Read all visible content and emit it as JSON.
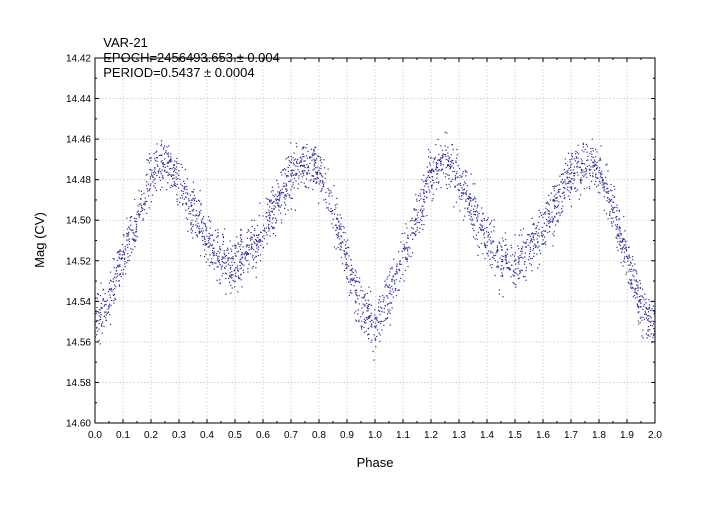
{
  "header": {
    "star": "VAR-21",
    "epoch": "EPOCH=2456493.653 ± 0.004",
    "period": "PERIOD=0.5437 ± 0.0004"
  },
  "chart_data": {
    "type": "scatter",
    "title": "",
    "xlabel": "Phase",
    "ylabel": "Mag (CV)",
    "xlim": [
      0.0,
      2.0
    ],
    "ylim": [
      14.42,
      14.6
    ],
    "y_inverted": true,
    "grid": true,
    "marker_color": "#2b2b9a",
    "x_ticks": [
      "0.0",
      "0.1",
      "0.2",
      "0.3",
      "0.4",
      "0.5",
      "0.6",
      "0.7",
      "0.8",
      "0.9",
      "1.0",
      "1.1",
      "1.2",
      "1.3",
      "1.4",
      "1.5",
      "1.6",
      "1.7",
      "1.8",
      "1.9",
      "2.0"
    ],
    "y_ticks": [
      "14.42",
      "14.44",
      "14.46",
      "14.48",
      "14.50",
      "14.52",
      "14.54",
      "14.56",
      "14.58",
      "14.60"
    ],
    "series": [
      {
        "phase": [
          0.0,
          0.05,
          0.1,
          0.15,
          0.2,
          0.25,
          0.3,
          0.35,
          0.4,
          0.45,
          0.5,
          0.55,
          0.6,
          0.65,
          0.7,
          0.75,
          0.8,
          0.85,
          0.9,
          0.95,
          1.0,
          1.05,
          1.1,
          1.15,
          1.2,
          1.25,
          1.3,
          1.35,
          1.4,
          1.45,
          1.5,
          1.55,
          1.6,
          1.65,
          1.7,
          1.75,
          1.8,
          1.85,
          1.9,
          1.95,
          2.0
        ],
        "mag": [
          14.552,
          14.538,
          14.518,
          14.5,
          14.478,
          14.47,
          14.48,
          14.495,
          14.508,
          14.52,
          14.523,
          14.515,
          14.505,
          14.492,
          14.478,
          14.473,
          14.476,
          14.495,
          14.52,
          14.542,
          14.552,
          14.538,
          14.518,
          14.5,
          14.478,
          14.47,
          14.48,
          14.495,
          14.508,
          14.52,
          14.523,
          14.515,
          14.505,
          14.492,
          14.478,
          14.473,
          14.476,
          14.495,
          14.52,
          14.542,
          14.552
        ],
        "scatter_mag": 0.01
      }
    ]
  }
}
